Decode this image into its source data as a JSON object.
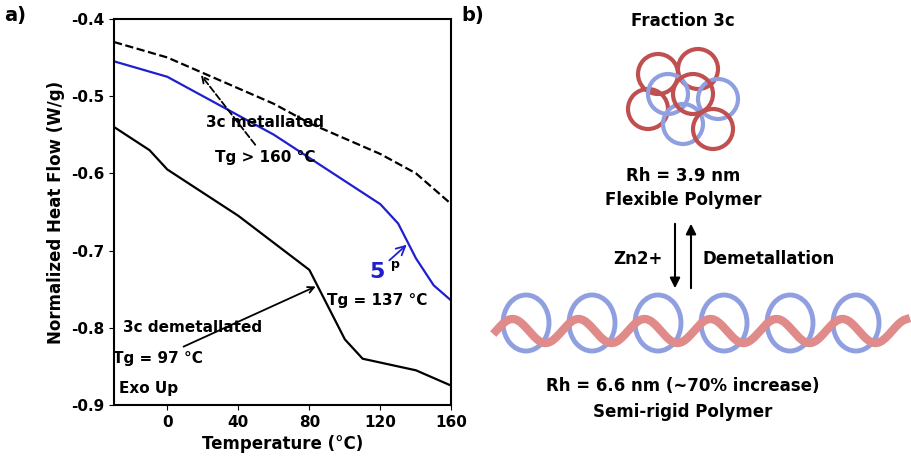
{
  "chart_data": {
    "type": "line",
    "title": "a)",
    "x_label": "Temperature (°C)",
    "y_label": "Normalized Heat Flow (W/g)",
    "xlim": [
      -30,
      160
    ],
    "xticks": [
      0,
      40,
      80,
      120,
      160
    ],
    "ylim": [
      -0.9,
      -0.4
    ],
    "yticks": [
      -0.9,
      -0.8,
      -0.7,
      -0.6,
      -0.5,
      -0.4
    ],
    "grid": false,
    "annotations": [
      "3c metallated",
      "Tg > 160 °C",
      "3c demetallated",
      "Tg = 97 °C",
      "5",
      "p",
      "Tg = 137 °C",
      "Exo Up"
    ],
    "series": [
      {
        "name": "3c metallated",
        "color": "#000000",
        "line_style": "dashed",
        "x": [
          -30,
          0,
          20,
          40,
          60,
          80,
          100,
          120,
          140,
          160
        ],
        "values": [
          -0.43,
          -0.45,
          -0.47,
          -0.49,
          -0.51,
          -0.535,
          -0.555,
          -0.575,
          -0.6,
          -0.64
        ]
      },
      {
        "name": "5",
        "color": "#1f1fcf",
        "line_style": "solid",
        "x": [
          -30,
          0,
          20,
          40,
          60,
          80,
          100,
          120,
          130,
          140,
          150,
          160
        ],
        "values": [
          -0.455,
          -0.475,
          -0.5,
          -0.525,
          -0.55,
          -0.58,
          -0.61,
          -0.64,
          -0.665,
          -0.71,
          -0.745,
          -0.765
        ]
      },
      {
        "name": "3c demetallated",
        "color": "#000000",
        "line_style": "solid",
        "x": [
          -30,
          -10,
          0,
          20,
          40,
          60,
          80,
          90,
          100,
          110,
          120,
          140,
          160
        ],
        "values": [
          -0.54,
          -0.57,
          -0.595,
          -0.625,
          -0.655,
          -0.69,
          -0.725,
          -0.77,
          -0.815,
          -0.84,
          -0.845,
          -0.855,
          -0.875
        ]
      }
    ]
  },
  "diagram": {
    "title": "b)",
    "top": {
      "label": "Fraction 3c",
      "radius": "Rh = 3.9 nm",
      "description": "Flexible Polymer"
    },
    "arrows": {
      "forward": "Zn2+",
      "reverse": "Demetallation"
    },
    "bottom": {
      "radius": "Rh = 6.6 nm (~70% increase)",
      "description": "Semi-rigid Polymer"
    }
  }
}
